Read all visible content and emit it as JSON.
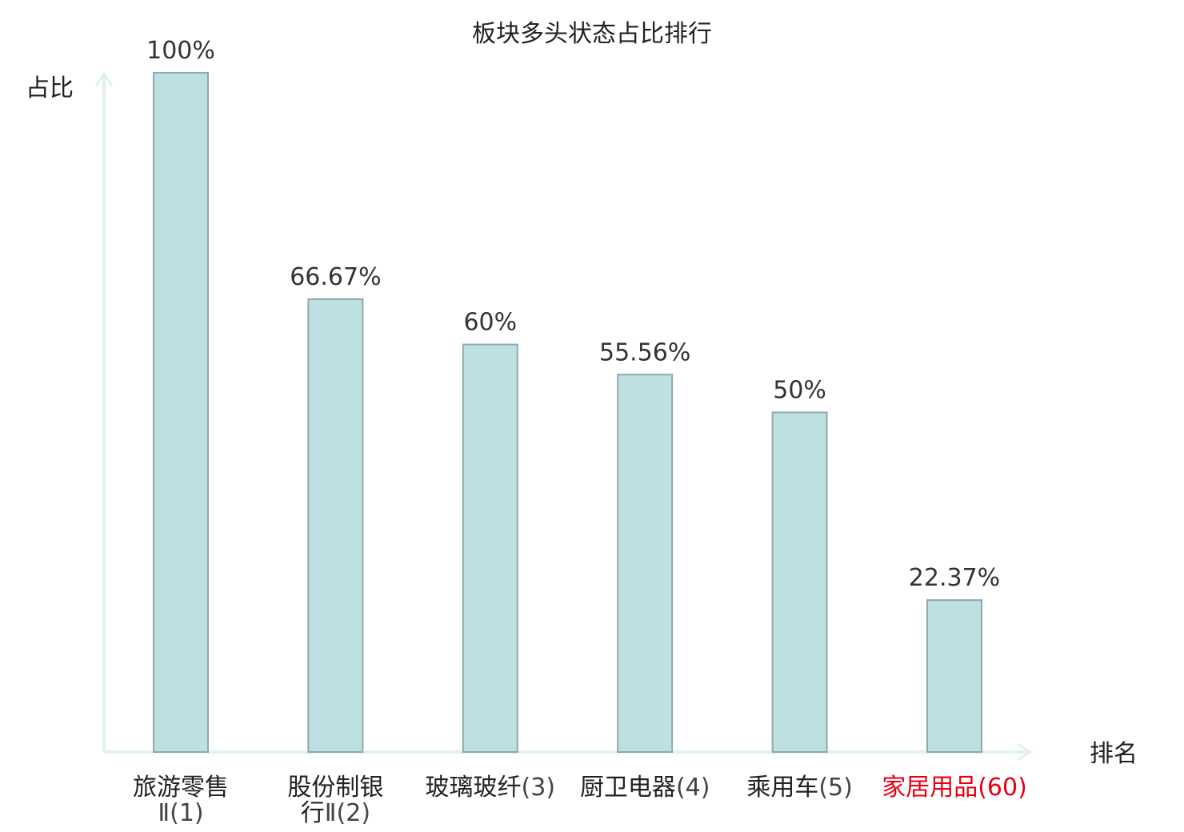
{
  "chart_data": {
    "type": "bar",
    "title": "板块多头状态占比排行",
    "ylabel": "占比",
    "xlabel": "排名",
    "ylim": [
      0,
      100
    ],
    "grid": false,
    "legend": "none",
    "bar_color": "#bde0e3",
    "bar_stroke": "#8fa9ac",
    "axis_color": "#e0f2ef",
    "highlight_color": "#e60012",
    "value_labels": [
      "100%",
      "66.67%",
      "60%",
      "55.56%",
      "50%",
      "22.37%"
    ],
    "categories": [
      {
        "lines": [
          {
            "name": "旅游零售",
            "rank": ""
          },
          {
            "name": "",
            "rank": "Ⅱ(1)"
          }
        ],
        "highlight": false
      },
      {
        "lines": [
          {
            "name": "股份制银",
            "rank": ""
          },
          {
            "name": "行",
            "rank": "Ⅱ(2)"
          }
        ],
        "highlight": false
      },
      {
        "lines": [
          {
            "name": "玻璃玻纤",
            "rank": "(3)"
          }
        ],
        "highlight": false
      },
      {
        "lines": [
          {
            "name": "厨卫电器",
            "rank": "(4)"
          }
        ],
        "highlight": false
      },
      {
        "lines": [
          {
            "name": "乘用车",
            "rank": "(5)"
          }
        ],
        "highlight": false
      },
      {
        "lines": [
          {
            "name": "家居用品",
            "rank": "(60)"
          }
        ],
        "highlight": true
      }
    ],
    "values": [
      100,
      66.67,
      60,
      55.56,
      50,
      22.37
    ]
  }
}
